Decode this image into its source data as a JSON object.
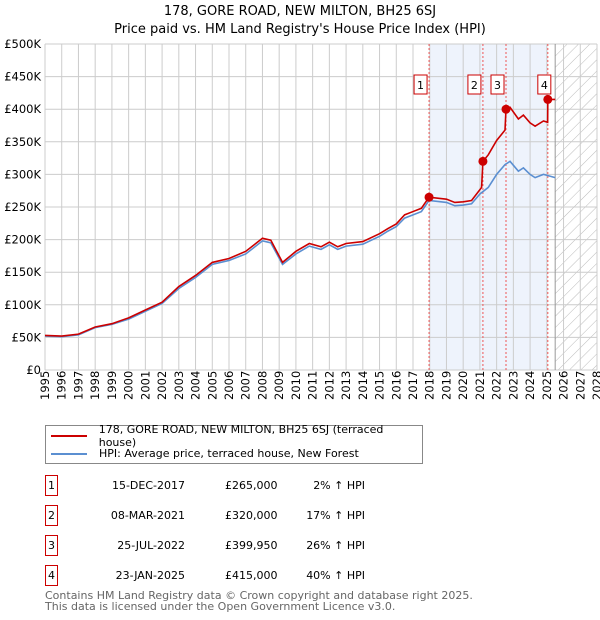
{
  "chart_data": {
    "type": "line",
    "title": "178, GORE ROAD, NEW MILTON, BH25 6SJ",
    "subtitle": "Price paid vs. HM Land Registry's House Price Index (HPI)",
    "xlim": [
      1995,
      2028
    ],
    "ylim": [
      0,
      500000
    ],
    "x_ticks": [
      "1995",
      "1996",
      "1997",
      "1998",
      "1999",
      "2000",
      "2001",
      "2002",
      "2003",
      "2004",
      "2005",
      "2006",
      "2007",
      "2008",
      "2009",
      "2010",
      "2011",
      "2012",
      "2013",
      "2014",
      "2015",
      "2016",
      "2017",
      "2018",
      "2019",
      "2020",
      "2021",
      "2022",
      "2023",
      "2024",
      "2025",
      "2026",
      "2027",
      "2028"
    ],
    "y_ticks": [
      {
        "v": 0,
        "l": "£0"
      },
      {
        "v": 50000,
        "l": "£50K"
      },
      {
        "v": 100000,
        "l": "£100K"
      },
      {
        "v": 150000,
        "l": "£150K"
      },
      {
        "v": 200000,
        "l": "£200K"
      },
      {
        "v": 250000,
        "l": "£250K"
      },
      {
        "v": 300000,
        "l": "£300K"
      },
      {
        "v": 350000,
        "l": "£350K"
      },
      {
        "v": 400000,
        "l": "£400K"
      },
      {
        "v": 450000,
        "l": "£450K"
      },
      {
        "v": 500000,
        "l": "£500K"
      }
    ],
    "grid": true,
    "shaded_region": [
      2017.96,
      2025.06
    ],
    "forecast_hatch_from": 2025.5,
    "series": [
      {
        "name": "178, GORE ROAD, NEW MILTON, BH25 6SJ (terraced house)",
        "color": "#cc0000",
        "x": [
          1995,
          1996,
          1997,
          1998,
          1999,
          2000,
          2001,
          2002,
          2003,
          2004,
          2005,
          2006,
          2007,
          2008,
          2008.5,
          2009.2,
          2010,
          2010.8,
          2011.5,
          2012,
          2012.5,
          2013,
          2014,
          2015,
          2015.5,
          2016,
          2016.5,
          2017,
          2017.5,
          2017.96,
          2019,
          2019.5,
          2020,
          2020.5,
          2021.1,
          2021.18,
          2021.5,
          2022,
          2022.5,
          2022.56,
          2022.8,
          2023.3,
          2023.6,
          2024,
          2024.3,
          2024.8,
          2025.05,
          2025.06,
          2025.5
        ],
        "y": [
          53000,
          52000,
          55000,
          66000,
          71000,
          80000,
          92000,
          104000,
          128000,
          145000,
          165000,
          171000,
          182000,
          202000,
          199000,
          165000,
          182000,
          194000,
          189000,
          196000,
          189000,
          194000,
          197000,
          209000,
          217000,
          224000,
          238000,
          243000,
          248000,
          265000,
          262000,
          257000,
          258000,
          260000,
          280000,
          320000,
          330000,
          352000,
          368000,
          399950,
          403000,
          385000,
          391000,
          379000,
          374000,
          382000,
          380000,
          415000,
          415000
        ]
      },
      {
        "name": "HPI: Average price, terraced house, New Forest",
        "color": "#5b8fd1",
        "x": [
          1995,
          1996,
          1997,
          1998,
          1999,
          2000,
          2001,
          2002,
          2003,
          2004,
          2005,
          2006,
          2007,
          2008,
          2008.5,
          2009.2,
          2010,
          2010.8,
          2011.5,
          2012,
          2012.5,
          2013,
          2014,
          2015,
          2015.5,
          2016,
          2016.5,
          2017,
          2017.5,
          2017.96,
          2019,
          2019.5,
          2020,
          2020.5,
          2021,
          2021.5,
          2022,
          2022.5,
          2022.8,
          2023.3,
          2023.6,
          2024,
          2024.3,
          2024.8,
          2025.5
        ],
        "y": [
          52000,
          51000,
          54000,
          65000,
          70000,
          78000,
          90000,
          102000,
          125000,
          142000,
          162000,
          168000,
          178000,
          198000,
          195000,
          162000,
          178000,
          190000,
          185000,
          192000,
          185000,
          190000,
          193000,
          205000,
          213000,
          220000,
          233000,
          238000,
          243000,
          260000,
          257000,
          252000,
          253000,
          255000,
          270000,
          280000,
          300000,
          315000,
          320000,
          305000,
          310000,
          300000,
          295000,
          300000,
          295000
        ]
      }
    ],
    "sales": [
      {
        "n": "1",
        "x": 2017.96,
        "y": 265000
      },
      {
        "n": "2",
        "x": 2021.18,
        "y": 320000
      },
      {
        "n": "3",
        "x": 2022.56,
        "y": 399950
      },
      {
        "n": "4",
        "x": 2025.06,
        "y": 415000
      }
    ]
  },
  "legend": {
    "red": "178, GORE ROAD, NEW MILTON, BH25 6SJ (terraced house)",
    "blue": "HPI: Average price, terraced house, New Forest"
  },
  "table": [
    {
      "n": "1",
      "date": "15-DEC-2017",
      "price": "£265,000",
      "hpi": "2% ↑ HPI"
    },
    {
      "n": "2",
      "date": "08-MAR-2021",
      "price": "£320,000",
      "hpi": "17% ↑ HPI"
    },
    {
      "n": "3",
      "date": "25-JUL-2022",
      "price": "£399,950",
      "hpi": "26% ↑ HPI"
    },
    {
      "n": "4",
      "date": "23-JAN-2025",
      "price": "£415,000",
      "hpi": "40% ↑ HPI"
    }
  ],
  "footer": {
    "line1": "Contains HM Land Registry data © Crown copyright and database right 2025.",
    "line2": "This data is licensed under the Open Government Licence v3.0."
  }
}
